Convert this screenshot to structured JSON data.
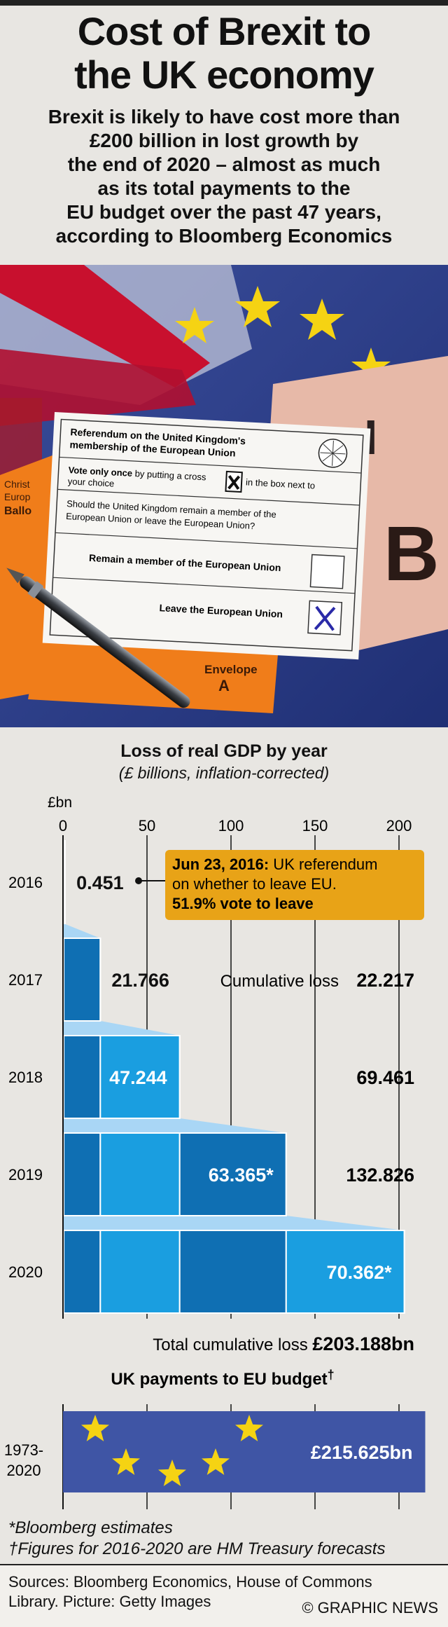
{
  "header": {
    "title_lines": [
      "Cost of Brexit to",
      "the UK economy"
    ],
    "subtitle_lines": [
      "Brexit is likely to have cost more than",
      "£200 billion in lost growth by",
      "the end of 2020 – almost as much",
      "as its total payments to the",
      "EU budget over the past 47 years,",
      "according to Bloomberg Economics"
    ]
  },
  "photo": {
    "ballot_heading_line1": "Referendum on the United Kingdom's",
    "ballot_heading_line2": "membership of the European Union",
    "vote_once_bold": "Vote only once",
    "vote_once_rest": " by putting a cross",
    "vote_once_rest2": "in the box next to",
    "your_choice": "your choice",
    "question_line1": "Should the United Kingdom remain a member of the",
    "question_line2": "European Union or leave the European Union?",
    "option_remain": "Remain a member of the European Union",
    "option_leave": "Leave the European Union",
    "envelope_line1": "Envelope",
    "envelope_line2": "A",
    "orange_card_line1": "Christ",
    "orange_card_line2": "Europ",
    "orange_card_line3": "Ballo",
    "card_letter": "B",
    "colors": {
      "flag_blue": "#2a3f8f",
      "flag_red": "#c8102e",
      "eu_star": "#f5d313",
      "envelope_orange": "#f07d1a"
    }
  },
  "chart_data": {
    "type": "bar",
    "title": "Loss of real GDP by year",
    "subtitle": "(£ billions, inflation-corrected)",
    "unit_label": "£bn",
    "xlim": [
      0,
      225
    ],
    "ticks": [
      0,
      50,
      100,
      150,
      200
    ],
    "categories": [
      "2016",
      "2017",
      "2018",
      "2019",
      "2020"
    ],
    "values": [
      0.451,
      21.766,
      47.244,
      63.365,
      70.362
    ],
    "value_labels": [
      "0.451",
      "21.766",
      "47.244",
      "63.365*",
      "70.362*"
    ],
    "cumulative": [
      0.451,
      22.217,
      69.461,
      132.826,
      203.188
    ],
    "cumulative_labels": [
      "",
      "22.217",
      "69.461",
      "132.826",
      ""
    ],
    "cumulative_prefix": "Cumulative loss",
    "annotation": {
      "date": "Jun 23, 2016:",
      "text_line1": " UK referendum",
      "text_line2": "on whether to leave EU.",
      "text_line3": "51.9% vote to leave"
    },
    "total_label_prefix": "Total cumulative loss",
    "total_label_value": "£203.188bn",
    "eu_budget": {
      "title": "UK payments to EU budget",
      "title_mark": "†",
      "period_line1": "1973-",
      "period_line2": "2020",
      "value": 215.625,
      "value_label": "£215.625bn"
    },
    "colors": {
      "bar_light": "#1a9ee0",
      "bar_dark": "#0f6fb3",
      "connector": "#a9d6f5",
      "annotation_fill": "#e8a317",
      "eu_fill": "#3f55a5",
      "eu_star": "#f5d313"
    }
  },
  "footnotes": {
    "estimate": "*Bloomberg estimates",
    "dagger_mark": "†",
    "dagger": "Figures for 2016-2020 are HM Treasury forecasts"
  },
  "footer": {
    "sources_line1": "Sources: Bloomberg Economics, House of Commons",
    "sources_line2": "Library. Picture: Getty Images",
    "credit": "© GRAPHIC NEWS"
  }
}
